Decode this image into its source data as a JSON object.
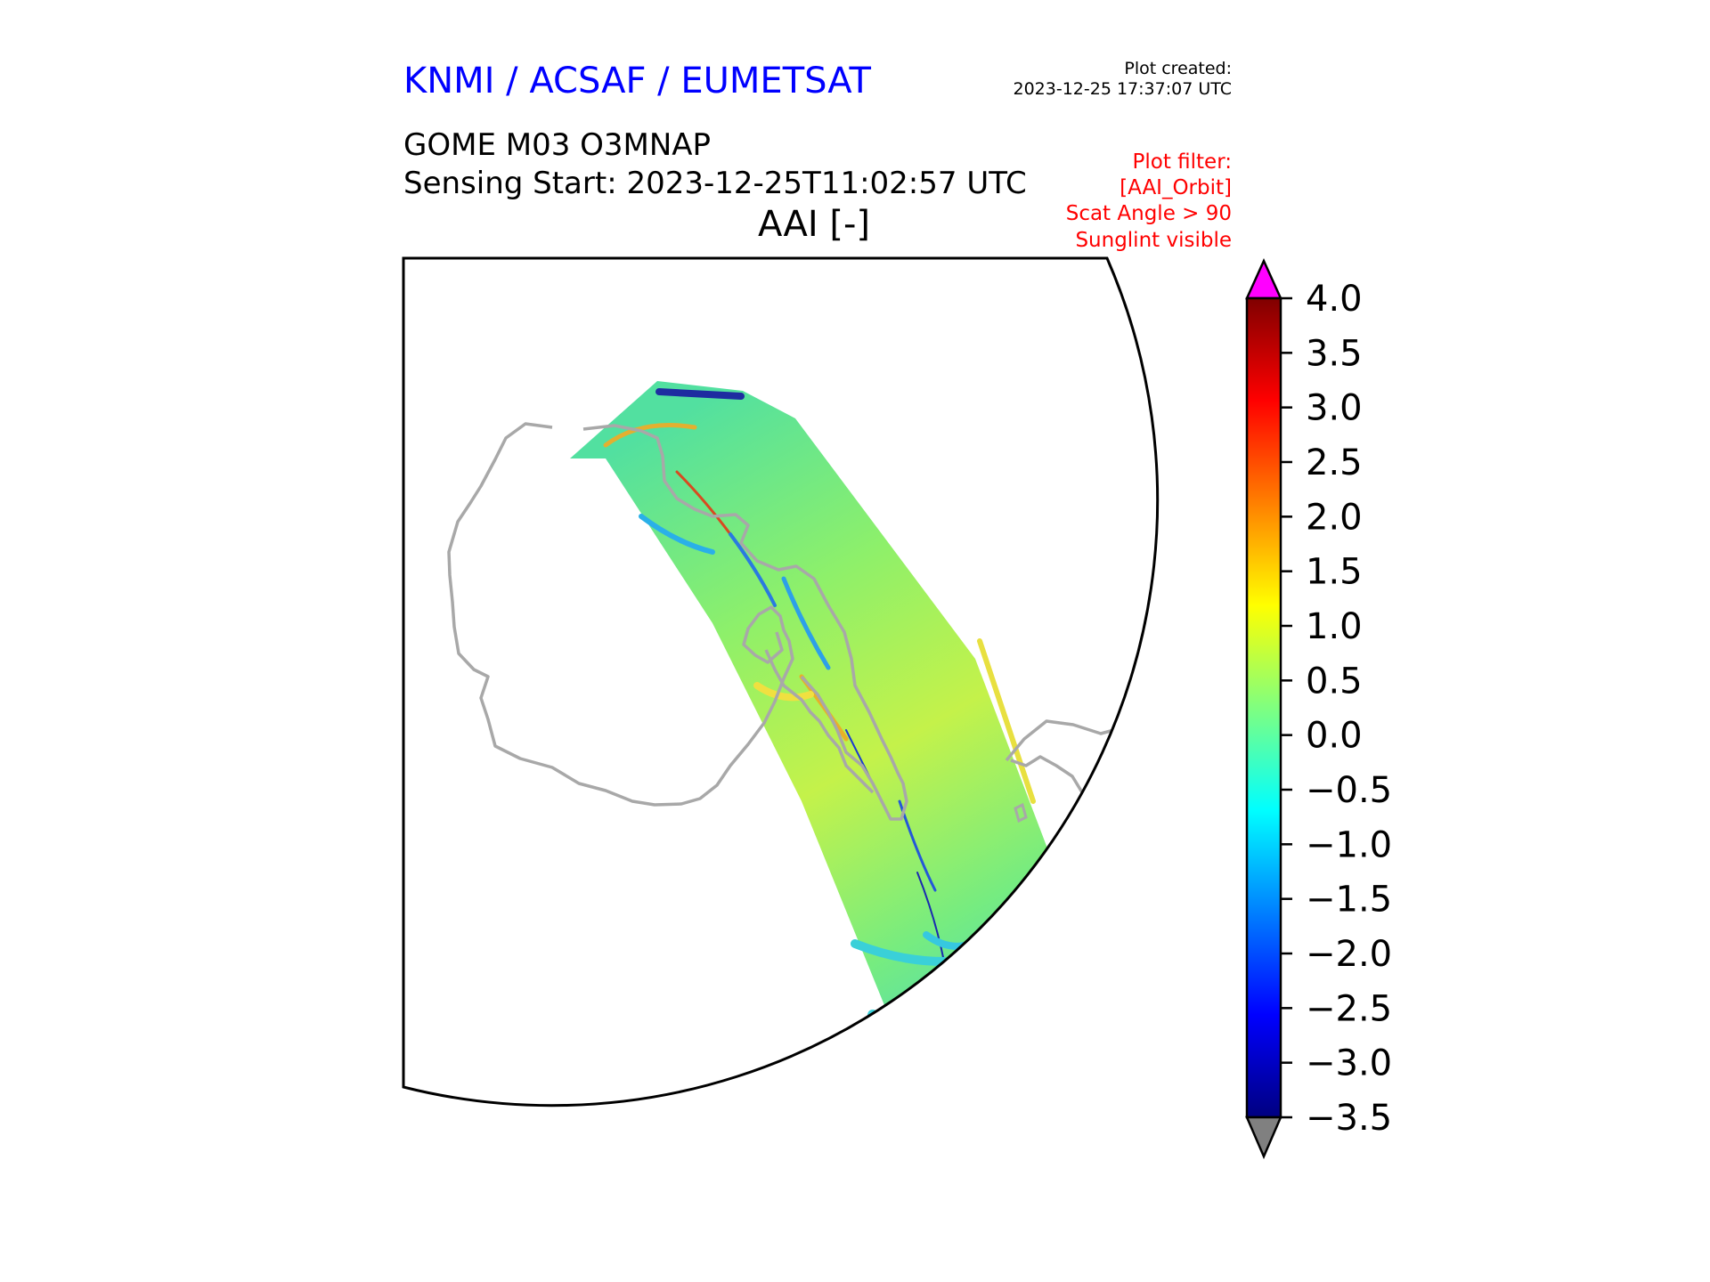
{
  "header": {
    "agency": "KNMI / ACSAF / EUMETSAT",
    "plot_created_label": "Plot created:",
    "plot_created_value": "2023-12-25 17:37:07 UTC",
    "product": "GOME M03 O3MNAP",
    "sensing_start": "Sensing Start: 2023-12-25T11:02:57 UTC",
    "variable": "AAI [-]"
  },
  "filter": {
    "lines": [
      "Plot filter:",
      "[AAI_Orbit]",
      "Scat Angle > 90",
      "Sunglint visible"
    ]
  },
  "colors": {
    "agency_text": "#0000ff",
    "filter_text": "#ff0000",
    "coastline": "#a8a8a8",
    "over_color": "#ff00ff",
    "under_color": "#808080",
    "colormap": "jet"
  },
  "colorbar": {
    "min": -3.5,
    "max": 4.0,
    "ticks": [
      "4.0",
      "3.5",
      "3.0",
      "2.5",
      "2.0",
      "1.5",
      "1.0",
      "0.5",
      "0.0",
      "−0.5",
      "−1.0",
      "−1.5",
      "−2.0",
      "−2.5",
      "−3.0",
      "−3.5"
    ],
    "extend": "both"
  }
}
